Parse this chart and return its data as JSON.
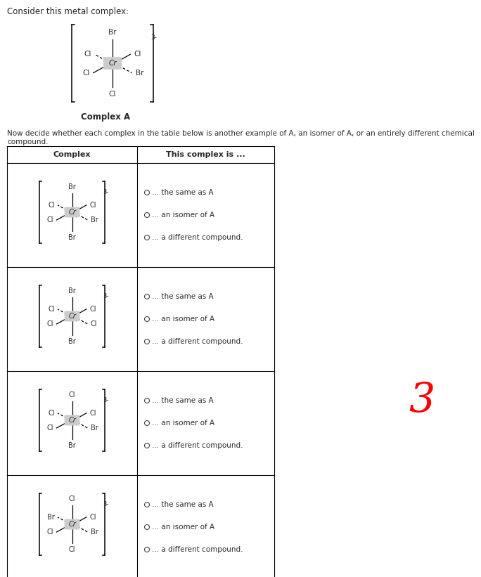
{
  "title_text": "Consider this metal complex:",
  "complex_a_label": "Complex A",
  "instruction_text": "Now decide whether each complex in the table below is another example of A, an isomer of A, or an entirely different chemical compound.",
  "table_header_col1": "Complex",
  "table_header_col2": "This complex is ...",
  "radio_options": [
    "... the same as A",
    "... an isomer of A",
    "... a different compound."
  ],
  "complexes": [
    {
      "top": "Br",
      "upper_left": "Cl",
      "upper_right": "Cl",
      "lower_left": "Cl",
      "lower_right": "Br",
      "bottom": "Br",
      "charge": "3-"
    },
    {
      "top": "Br",
      "upper_left": "Cl",
      "upper_right": "Cl",
      "lower_left": "Cl",
      "lower_right": "Cl",
      "bottom": "Br",
      "charge": "3-"
    },
    {
      "top": "Cl",
      "upper_left": "Cl",
      "upper_right": "Cl",
      "lower_left": "Cl",
      "lower_right": "Br",
      "bottom": "Br",
      "charge": "3-"
    },
    {
      "top": "Cl",
      "upper_left": "Br",
      "upper_right": "Cl",
      "lower_left": "Cl",
      "lower_right": "Br",
      "bottom": "Cl",
      "charge": "3-"
    }
  ],
  "complex_a": {
    "top": "Br",
    "upper_left": "Cl",
    "upper_right": "Cl",
    "lower_left": "Cl",
    "lower_right": "Br",
    "bottom": "Cl",
    "charge": "3-"
  },
  "red_number": "3",
  "bg_color": "#ffffff",
  "text_color": "#2a2a2a",
  "cr_box_color": "#cccccc",
  "table_line_color": "#333333",
  "fig_width": 6.84,
  "fig_height": 8.21,
  "dpi": 100
}
